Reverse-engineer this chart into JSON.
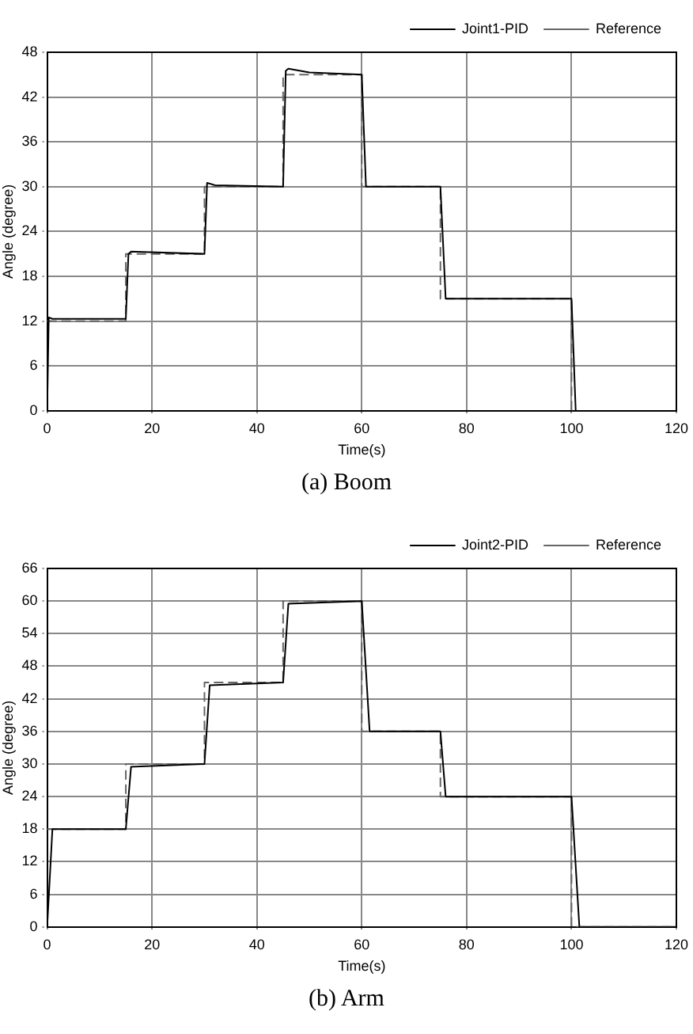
{
  "chart_data": [
    {
      "type": "line",
      "title": "(a) Boom",
      "xlabel": "Time(s)",
      "ylabel": "Angle (degree)",
      "xlim": [
        0,
        120
      ],
      "xticks": [
        0,
        20,
        40,
        60,
        80,
        100,
        120
      ],
      "ylim": [
        0,
        48
      ],
      "yticks": [
        0,
        6,
        12,
        18,
        24,
        30,
        36,
        42,
        48
      ],
      "grid": true,
      "legend": "top right",
      "series": [
        {
          "name": "Joint1-PID",
          "color": "#000000",
          "line_style": "solid",
          "x": [
            0,
            0.3,
            1,
            15,
            15.5,
            16,
            30,
            30.5,
            32,
            45,
            45.5,
            46,
            50,
            60,
            60.8,
            75,
            76,
            100,
            100.8
          ],
          "values": [
            0,
            12.5,
            12.3,
            12.3,
            21,
            21.3,
            21,
            30.5,
            30.2,
            30,
            45.5,
            45.8,
            45.3,
            45,
            30,
            30,
            15,
            15,
            0
          ]
        },
        {
          "name": "Reference",
          "color": "#666666",
          "line_style": "dashed",
          "x": [
            0,
            15,
            15,
            30,
            30,
            45,
            45,
            60,
            60,
            75,
            75,
            100,
            100
          ],
          "values": [
            12,
            12,
            21,
            21,
            30,
            30,
            45,
            45,
            30,
            30,
            15,
            15,
            0
          ]
        }
      ]
    },
    {
      "type": "line",
      "title": "(b) Arm",
      "xlabel": "Time(s)",
      "ylabel": "Angle (degree)",
      "xlim": [
        0,
        120
      ],
      "xticks": [
        0,
        20,
        40,
        60,
        80,
        100,
        120
      ],
      "ylim": [
        0,
        66
      ],
      "yticks": [
        0,
        6,
        12,
        18,
        24,
        30,
        36,
        42,
        48,
        54,
        60,
        66
      ],
      "grid": true,
      "legend": "top right",
      "series": [
        {
          "name": "Joint2-PID",
          "color": "#000000",
          "line_style": "solid",
          "x": [
            0,
            1,
            15,
            16,
            30,
            31,
            45,
            46,
            60,
            61.5,
            75,
            76,
            100,
            101.5,
            120
          ],
          "values": [
            0,
            18,
            18,
            29.5,
            30,
            44.5,
            45,
            59.5,
            60,
            36,
            36,
            24,
            24,
            0,
            0
          ]
        },
        {
          "name": "Reference",
          "color": "#666666",
          "line_style": "dashed",
          "x": [
            0,
            15,
            15,
            30,
            30,
            45,
            45,
            60,
            60,
            75,
            75,
            100,
            100,
            120
          ],
          "values": [
            18,
            18,
            30,
            30,
            45,
            45,
            60,
            60,
            36,
            36,
            24,
            24,
            0,
            0
          ]
        }
      ]
    }
  ]
}
